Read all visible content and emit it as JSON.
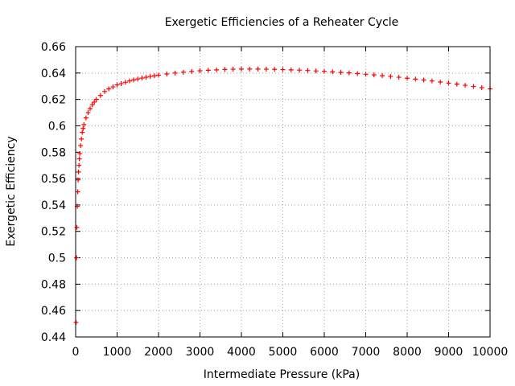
{
  "chart_data": {
    "type": "scatter",
    "title": "Exergetic Efficiencies of a Reheater Cycle",
    "xlabel": "Intermediate Pressure (kPa)",
    "ylabel": "Exergetic Efficiency",
    "xlim": [
      0,
      10000
    ],
    "ylim": [
      0.44,
      0.66
    ],
    "x_ticks": [
      "0",
      "1000",
      "2000",
      "3000",
      "4000",
      "5000",
      "6000",
      "7000",
      "8000",
      "9000",
      "10000"
    ],
    "y_ticks": [
      "0.44",
      "0.46",
      "0.48",
      "0.5",
      "0.52",
      "0.54",
      "0.56",
      "0.58",
      "0.6",
      "0.62",
      "0.64",
      "0.66"
    ],
    "grid": true,
    "marker": "plus",
    "color": "#ff0000",
    "series": [
      {
        "x": [
          10,
          20,
          30,
          40,
          50,
          60,
          70,
          80,
          90,
          100,
          120,
          140,
          160,
          180,
          200,
          250,
          300,
          350,
          400,
          450,
          500,
          600,
          700,
          800,
          900,
          1000,
          1100,
          1200,
          1300,
          1400,
          1500,
          1600,
          1700,
          1800,
          1900,
          2000,
          2200,
          2400,
          2600,
          2800,
          3000,
          3200,
          3400,
          3600,
          3800,
          4000,
          4200,
          4400,
          4600,
          4800,
          5000,
          5200,
          5400,
          5600,
          5800,
          6000,
          6200,
          6400,
          6600,
          6800,
          7000,
          7200,
          7400,
          7600,
          7800,
          8000,
          8200,
          8400,
          8600,
          8800,
          9000,
          9200,
          9400,
          9600,
          9800,
          10000
        ],
        "y": [
          0.451,
          0.5,
          0.523,
          0.539,
          0.55,
          0.559,
          0.565,
          0.57,
          0.575,
          0.579,
          0.585,
          0.59,
          0.595,
          0.598,
          0.601,
          0.606,
          0.61,
          0.613,
          0.616,
          0.618,
          0.62,
          0.623,
          0.626,
          0.628,
          0.6295,
          0.631,
          0.632,
          0.633,
          0.634,
          0.6348,
          0.6355,
          0.6362,
          0.6368,
          0.6374,
          0.6379,
          0.6384,
          0.6393,
          0.64,
          0.6406,
          0.6412,
          0.6417,
          0.6421,
          0.6424,
          0.6427,
          0.6429,
          0.643,
          0.643,
          0.643,
          0.6429,
          0.6428,
          0.6426,
          0.6424,
          0.6422,
          0.6419,
          0.6416,
          0.6413,
          0.6409,
          0.6405,
          0.6401,
          0.6396,
          0.6391,
          0.6386,
          0.638,
          0.6374,
          0.6368,
          0.6361,
          0.6354,
          0.6347,
          0.634,
          0.6332,
          0.6324,
          0.6316,
          0.6307,
          0.6298,
          0.6289,
          0.628
        ]
      }
    ]
  }
}
